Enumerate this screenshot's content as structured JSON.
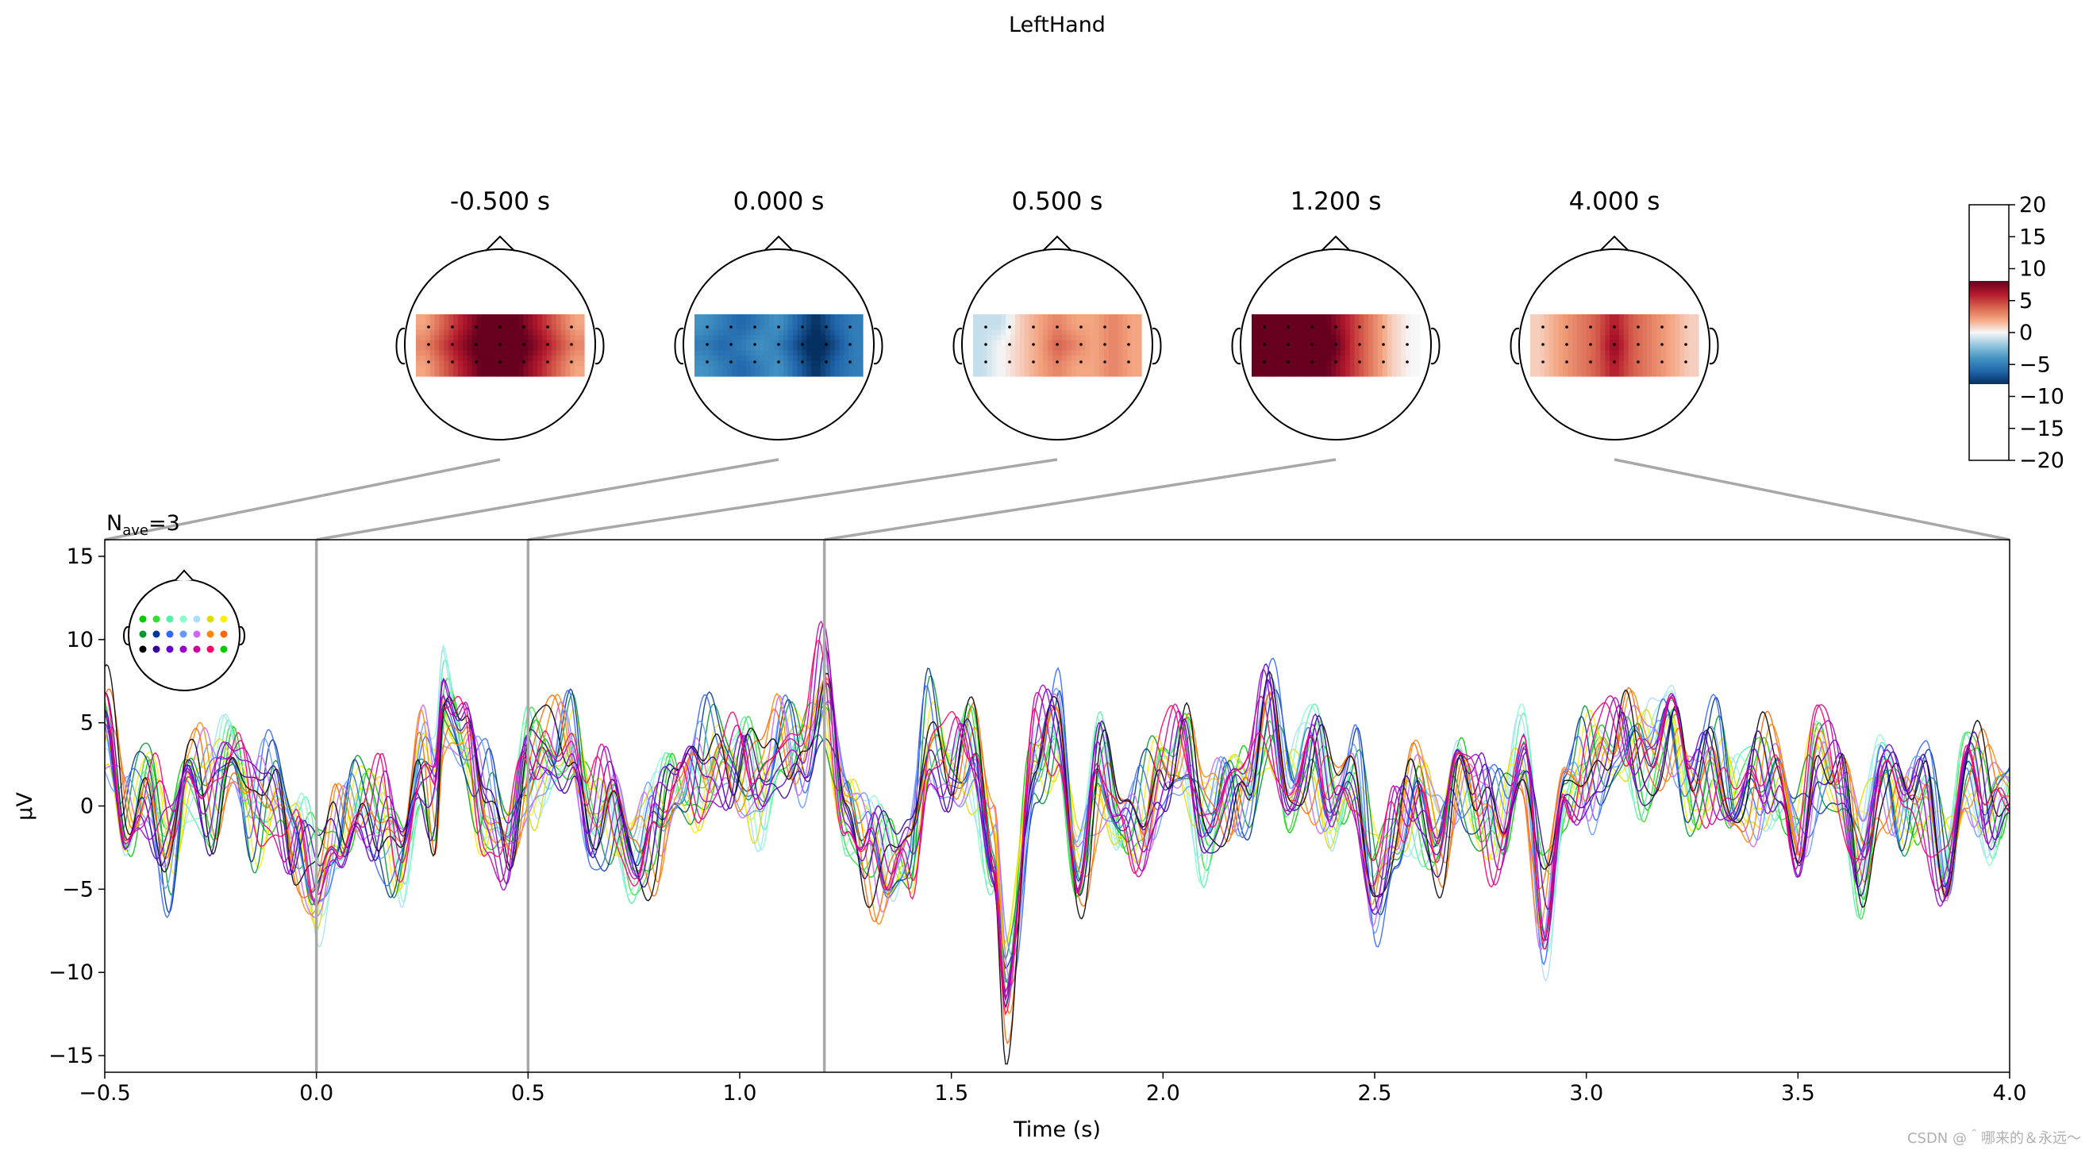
{
  "chart_data": {
    "type": "line",
    "title": "LeftHand",
    "nave_label": "N",
    "nave_sub": "ave",
    "nave_value": "=3",
    "xlabel": "Time (s)",
    "ylabel": "µV",
    "xlim": [
      -0.5,
      4.0
    ],
    "ylim": [
      -16,
      16
    ],
    "xticks": [
      -0.5,
      0.0,
      0.5,
      1.0,
      1.5,
      2.0,
      2.5,
      3.0,
      3.5,
      4.0
    ],
    "xtick_labels": [
      "−0.5",
      "0.0",
      "0.5",
      "1.0",
      "1.5",
      "2.0",
      "2.5",
      "3.0",
      "3.5",
      "4.0"
    ],
    "yticks": [
      15,
      10,
      5,
      0,
      -5,
      -10,
      -15
    ],
    "ytick_labels": [
      "15",
      "10",
      "5",
      "0",
      "−5",
      "−10",
      "−15"
    ],
    "topomap_times": [
      -0.5,
      0.0,
      0.5,
      1.2,
      4.0
    ],
    "topomap_titles": [
      "-0.500 s",
      "0.000 s",
      "0.500 s",
      "1.200 s",
      "4.000 s"
    ],
    "colorbar": {
      "range": [
        -20,
        20
      ],
      "data_range": [
        -8,
        8
      ],
      "ticks": [
        20,
        15,
        10,
        5,
        0,
        -5,
        -10,
        -15,
        -20
      ],
      "tick_labels": [
        "20",
        "15",
        "10",
        "5",
        "0",
        "−5",
        "−10",
        "−15",
        "−20"
      ]
    },
    "channel_colors": [
      "#00cc00",
      "#33dd33",
      "#55eeaa",
      "#88ffcc",
      "#aaddff",
      "#dddd00",
      "#ffee00",
      "#009933",
      "#003399",
      "#3366ff",
      "#6699ff",
      "#cc66ff",
      "#ff8800",
      "#ff6600",
      "#000000",
      "#330099",
      "#6600cc",
      "#9900cc",
      "#cc0099",
      "#ff0066"
    ],
    "trace_keypoints": {
      "t": [
        -0.5,
        -0.45,
        -0.4,
        -0.35,
        -0.3,
        -0.25,
        -0.2,
        -0.15,
        -0.1,
        -0.05,
        0.0,
        0.05,
        0.1,
        0.15,
        0.2,
        0.25,
        0.28,
        0.3,
        0.35,
        0.4,
        0.45,
        0.5,
        0.55,
        0.6,
        0.65,
        0.7,
        0.75,
        0.8,
        0.85,
        0.9,
        0.95,
        1.0,
        1.05,
        1.1,
        1.15,
        1.2,
        1.25,
        1.3,
        1.35,
        1.4,
        1.45,
        1.5,
        1.55,
        1.6,
        1.63,
        1.7,
        1.75,
        1.8,
        1.85,
        1.9,
        1.95,
        2.0,
        2.05,
        2.1,
        2.15,
        2.2,
        2.25,
        2.3,
        2.35,
        2.4,
        2.45,
        2.5,
        2.55,
        2.6,
        2.65,
        2.7,
        2.75,
        2.8,
        2.85,
        2.9,
        2.95,
        3.0,
        3.05,
        3.1,
        3.15,
        3.2,
        3.25,
        3.3,
        3.35,
        3.4,
        3.45,
        3.5,
        3.55,
        3.6,
        3.65,
        3.7,
        3.75,
        3.8,
        3.85,
        3.9,
        3.95,
        4.0
      ],
      "v": [
        5,
        -1,
        1,
        -3,
        2,
        1,
        3,
        0,
        1,
        -2,
        -5,
        -2,
        0,
        -1,
        -3,
        3,
        1,
        6,
        4,
        0,
        -2,
        2,
        3,
        4,
        -1,
        0,
        -3,
        -1,
        1,
        2,
        3,
        2,
        1,
        4,
        3,
        7,
        0,
        -2,
        -4,
        -3,
        4,
        2,
        3,
        -3,
        -11,
        3,
        5,
        -4,
        2,
        -1,
        -1,
        2,
        3,
        -1,
        1,
        1,
        6,
        1,
        3,
        0,
        2,
        -5,
        -2,
        1,
        -2,
        2,
        0,
        -1,
        3,
        -7,
        1,
        2,
        3,
        4,
        3,
        5,
        1,
        3,
        0,
        1,
        2,
        -2,
        3,
        1,
        -3,
        2,
        0,
        1,
        -4,
        2,
        0,
        1
      ]
    },
    "topomap_values": [
      [
        [
          2,
          4,
          6,
          8,
          10,
          8,
          6,
          4,
          2
        ],
        [
          3,
          5,
          7,
          9,
          12,
          9,
          7,
          5,
          3
        ],
        [
          2,
          4,
          6,
          8,
          10,
          8,
          6,
          4,
          2
        ]
      ],
      [
        [
          -4,
          -5,
          -6,
          -5,
          -4,
          -6,
          -8,
          -6,
          -5
        ],
        [
          -5,
          -6,
          -5,
          -4,
          -5,
          -7,
          -9,
          -7,
          -5
        ],
        [
          -4,
          -5,
          -6,
          -5,
          -4,
          -6,
          -8,
          -6,
          -5
        ]
      ],
      [
        [
          -1,
          -1,
          1,
          2,
          3,
          2,
          2,
          3,
          2
        ],
        [
          -1,
          0,
          1,
          2,
          4,
          3,
          2,
          3,
          2
        ],
        [
          -1,
          0,
          1,
          2,
          3,
          2,
          2,
          3,
          2
        ]
      ],
      [
        [
          9,
          10,
          10,
          9,
          7,
          5,
          3,
          1,
          0
        ],
        [
          10,
          11,
          11,
          10,
          8,
          5,
          3,
          1,
          0
        ],
        [
          9,
          10,
          10,
          9,
          7,
          5,
          3,
          1,
          0
        ]
      ],
      [
        [
          1,
          2,
          3,
          4,
          6,
          4,
          3,
          2,
          1
        ],
        [
          1,
          2,
          3,
          4,
          7,
          4,
          3,
          2,
          1
        ],
        [
          1,
          2,
          3,
          4,
          6,
          4,
          3,
          2,
          1
        ]
      ]
    ]
  },
  "watermark": "CSDN @＾哪来的＆永远～"
}
